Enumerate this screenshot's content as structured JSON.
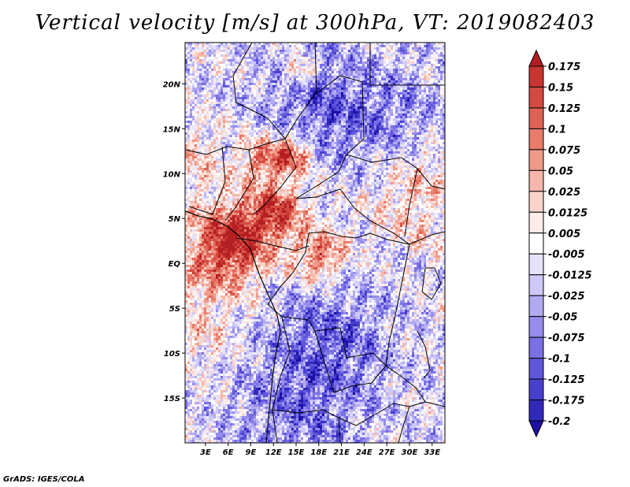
{
  "title": "Vertical velocity [m/s] at 300hPa, VT: 2019082403",
  "credit": "GrADS: IGES/COLA",
  "map": {
    "variable": "Vertical velocity",
    "units": "m/s",
    "level": "300hPa",
    "valid_time": "2019082403",
    "lon_labels": [
      "3E",
      "6E",
      "9E",
      "12E",
      "15E",
      "18E",
      "21E",
      "24E",
      "27E",
      "30E",
      "33E"
    ],
    "lat_labels": [
      "20N",
      "15N",
      "10N",
      "5N",
      "EQ",
      "5S",
      "10S",
      "15S"
    ]
  },
  "colorbar": {
    "labels": [
      "0.175",
      "0.15",
      "0.125",
      "0.1",
      "0.075",
      "0.05",
      "0.025",
      "0.0125",
      "0.005",
      "-0.005",
      "-0.0125",
      "-0.025",
      "-0.05",
      "-0.075",
      "-0.1",
      "-0.125",
      "-0.175",
      "-0.2"
    ],
    "colors": [
      "#b41f24",
      "#c8342f",
      "#d44a40",
      "#de6253",
      "#e87b6a",
      "#f09a8a",
      "#f6b7aa",
      "#fad3ca",
      "#fdece8",
      "#ffffff",
      "#e5e3fb",
      "#cdc8f7",
      "#b1aaf1",
      "#958ceb",
      "#7970e4",
      "#5f56dc",
      "#4740cf",
      "#3128bc",
      "#1d10a8"
    ]
  }
}
